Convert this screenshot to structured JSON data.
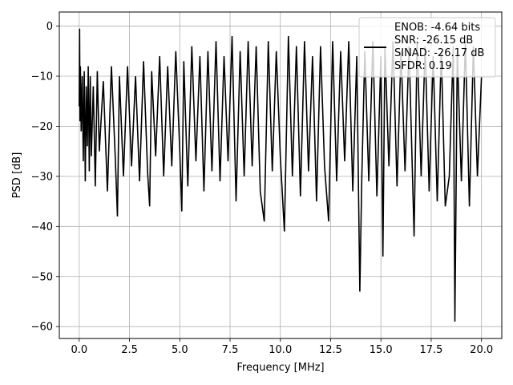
{
  "chart_data": {
    "type": "line",
    "title": "",
    "xlabel": "Frequency [MHz]",
    "ylabel": "PSD [dB]",
    "xlim": [
      -0.99,
      21.01
    ],
    "ylim": [
      -62.37,
      2.81
    ],
    "xticks": [
      0.0,
      2.5,
      5.0,
      7.5,
      10.0,
      12.5,
      15.0,
      17.5,
      20.0
    ],
    "xtick_labels": [
      "0.0",
      "2.5",
      "5.0",
      "7.5",
      "10.0",
      "12.5",
      "15.0",
      "17.5",
      "20.0"
    ],
    "yticks": [
      0,
      -10,
      -20,
      -30,
      -40,
      -50,
      -60
    ],
    "ytick_labels": [
      "0",
      "−10",
      "−20",
      "−30",
      "−40",
      "−50",
      "−60"
    ],
    "grid": true,
    "legend": {
      "placement": "top-right",
      "entries": [
        "ENOB: -4.64 bits",
        "SNR: -26.15 dB",
        "SINAD: -26.17 dB",
        "SFDR: 0.19"
      ]
    },
    "series": [
      {
        "color": "#000000",
        "x": [
          0.0,
          0.02,
          0.04,
          0.06,
          0.08,
          0.1,
          0.15,
          0.2,
          0.25,
          0.3,
          0.35,
          0.4,
          0.45,
          0.5,
          0.55,
          0.6,
          0.7,
          0.8,
          0.9,
          1.0,
          1.2,
          1.4,
          1.6,
          1.8,
          1.9,
          2.0,
          2.2,
          2.4,
          2.6,
          2.8,
          3.0,
          3.2,
          3.4,
          3.5,
          3.6,
          3.8,
          4.0,
          4.2,
          4.4,
          4.6,
          4.8,
          5.0,
          5.1,
          5.2,
          5.4,
          5.6,
          5.8,
          6.0,
          6.2,
          6.4,
          6.6,
          6.8,
          7.0,
          7.2,
          7.4,
          7.6,
          7.8,
          8.0,
          8.2,
          8.4,
          8.6,
          8.8,
          9.0,
          9.2,
          9.4,
          9.6,
          9.8,
          10.0,
          10.2,
          10.4,
          10.6,
          10.8,
          11.0,
          11.2,
          11.4,
          11.6,
          11.8,
          12.0,
          12.2,
          12.4,
          12.6,
          12.8,
          13.0,
          13.2,
          13.4,
          13.6,
          13.8,
          13.95,
          14.05,
          14.2,
          14.4,
          14.6,
          14.8,
          15.0,
          15.1,
          15.2,
          15.4,
          15.6,
          15.8,
          16.0,
          16.2,
          16.4,
          16.6,
          16.65,
          16.8,
          17.0,
          17.2,
          17.4,
          17.6,
          17.8,
          18.0,
          18.2,
          18.4,
          18.6,
          18.68,
          18.72,
          18.8,
          19.0,
          19.2,
          19.4,
          19.6,
          19.8,
          20.0
        ],
        "y": [
          -16,
          -0.5,
          -19,
          -8,
          -14,
          -21,
          -10,
          -27,
          -9,
          -31,
          -12,
          -24,
          -8,
          -29,
          -10,
          -26,
          -12,
          -32,
          -9,
          -25,
          -11,
          -33,
          -8,
          -27,
          -38,
          -10,
          -30,
          -8,
          -28,
          -10,
          -31,
          -7,
          -29,
          -36,
          -9,
          -26,
          -6,
          -30,
          -8,
          -28,
          -5,
          -25,
          -37,
          -7,
          -32,
          -4,
          -27,
          -6,
          -33,
          -5,
          -29,
          -3,
          -31,
          -6,
          -27,
          -2,
          -35,
          -5,
          -30,
          -3,
          -28,
          -4,
          -33,
          -39,
          -3,
          -29,
          -5,
          -26,
          -41,
          -2,
          -30,
          -4,
          -34,
          -3,
          -29,
          -6,
          -35,
          -4,
          -28,
          -39,
          -3,
          -31,
          -5,
          -27,
          -3,
          -33,
          -6,
          -53,
          -30,
          -5,
          -31,
          -3,
          -34,
          -6,
          -46,
          -4,
          -28,
          -3,
          -32,
          -5,
          -29,
          -4,
          -34,
          -42,
          -3,
          -30,
          -4,
          -33,
          -6,
          -35,
          -5,
          -36,
          -30,
          -4,
          -59,
          -42,
          -5,
          -31,
          -3,
          -36,
          -4,
          -30,
          -10
        ]
      }
    ]
  }
}
